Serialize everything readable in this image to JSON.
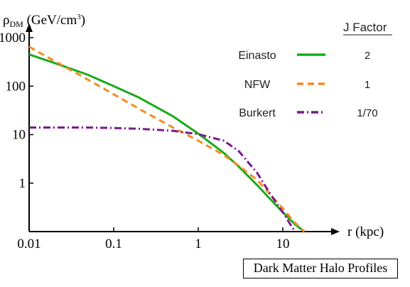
{
  "chart_data": {
    "type": "line",
    "ylabel": "ρDM (GeV/cm³)",
    "ylabel_parts": {
      "rho": "ρ",
      "sub": "DM",
      "unit": " (GeV/cm",
      "exp": "3",
      "close": ")"
    },
    "xlabel": "r (kpc)",
    "x_scale": "log",
    "y_scale": "log",
    "xlim": [
      0.01,
      50
    ],
    "ylim": [
      0.1,
      1000
    ],
    "x_ticks": [
      {
        "value": 0.01,
        "label": "0.01"
      },
      {
        "value": 0.1,
        "label": "0.1"
      },
      {
        "value": 1,
        "label": "1"
      },
      {
        "value": 10,
        "label": "10"
      }
    ],
    "y_ticks": [
      {
        "value": 1,
        "label": "1"
      },
      {
        "value": 10,
        "label": "10"
      },
      {
        "value": 100,
        "label": "100"
      },
      {
        "value": 1000,
        "label": "1000"
      }
    ],
    "legend_header": "J Factor",
    "legend_position": "top-right",
    "caption": "Dark Matter Halo Profiles",
    "series": [
      {
        "name": "Einasto",
        "j_factor": "2",
        "color": "#1aaa1a",
        "dash": "solid",
        "points": [
          [
            0.01,
            450
          ],
          [
            0.02,
            300
          ],
          [
            0.05,
            170
          ],
          [
            0.1,
            100
          ],
          [
            0.2,
            58
          ],
          [
            0.5,
            24
          ],
          [
            1,
            10.5
          ],
          [
            2,
            4.2
          ],
          [
            3,
            2.2
          ],
          [
            5,
            0.9
          ],
          [
            7,
            0.48
          ],
          [
            10,
            0.25
          ],
          [
            14,
            0.14
          ],
          [
            18,
            0.1
          ]
        ]
      },
      {
        "name": "NFW",
        "j_factor": "1",
        "color": "#f58a1f",
        "dash": "dashed",
        "points": [
          [
            0.01,
            650
          ],
          [
            0.02,
            330
          ],
          [
            0.05,
            135
          ],
          [
            0.1,
            68
          ],
          [
            0.2,
            34
          ],
          [
            0.5,
            14
          ],
          [
            1,
            7.5
          ],
          [
            2,
            3.8
          ],
          [
            3,
            2.3
          ],
          [
            5,
            1.15
          ],
          [
            7,
            0.6
          ],
          [
            10,
            0.3
          ],
          [
            14,
            0.15
          ],
          [
            18,
            0.1
          ]
        ]
      },
      {
        "name": "Burkert",
        "j_factor": "1/70",
        "color": "#7a1a8c",
        "dash": "dashdot",
        "points": [
          [
            0.01,
            14
          ],
          [
            0.05,
            14
          ],
          [
            0.1,
            13.7
          ],
          [
            0.2,
            13.2
          ],
          [
            0.5,
            12
          ],
          [
            1,
            10.2
          ],
          [
            2,
            7.5
          ],
          [
            3,
            4.6
          ],
          [
            5,
            1.6
          ],
          [
            7,
            0.62
          ],
          [
            10,
            0.25
          ],
          [
            12,
            0.15
          ],
          [
            14,
            0.1
          ]
        ]
      }
    ]
  }
}
